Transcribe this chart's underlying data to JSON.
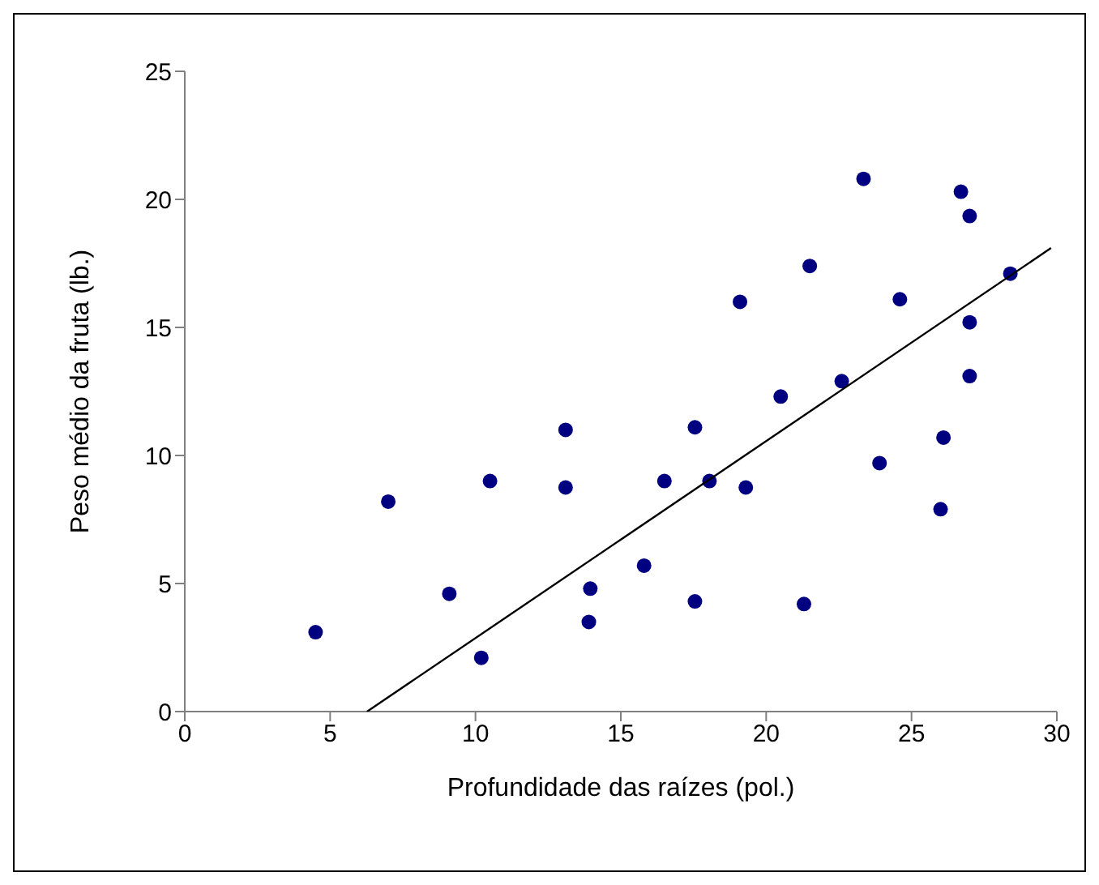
{
  "chart_data": {
    "type": "scatter",
    "xlabel": "Profundidade das raízes (pol.)",
    "ylabel": "Peso médio da fruta (lb.)",
    "xlim": [
      0,
      30
    ],
    "xticks": [
      0,
      5,
      10,
      15,
      20,
      25,
      30
    ],
    "ylim": [
      0,
      25
    ],
    "yticks": [
      0,
      5,
      10,
      15,
      20,
      25
    ],
    "grid": false,
    "marker": "circle",
    "series": [
      {
        "color": "#000080",
        "x": [
          4.5,
          7.0,
          9.1,
          10.2,
          10.5,
          13.1,
          13.1,
          13.95,
          13.9,
          15.8,
          17.55,
          17.55,
          16.5,
          18.05,
          19.3,
          19.1,
          20.5,
          21.3,
          21.5,
          22.6,
          23.35,
          23.9,
          24.6,
          26.0,
          26.1,
          26.7,
          27.0,
          27.0,
          27.0,
          28.4
        ],
        "values": [
          3.1,
          8.2,
          4.6,
          2.1,
          9.0,
          11.0,
          8.75,
          4.8,
          3.5,
          5.7,
          4.3,
          11.1,
          9.0,
          9.0,
          8.75,
          16.0,
          12.3,
          4.2,
          17.4,
          12.9,
          20.8,
          9.7,
          16.1,
          7.9,
          10.7,
          20.3,
          19.35,
          15.2,
          13.1,
          17.1
        ]
      },
      {
        "type": "line",
        "color": "#000000",
        "line_style": "solid",
        "marker": "none",
        "x": [
          6.27,
          29.8
        ],
        "values": [
          0,
          18.1
        ]
      }
    ]
  }
}
